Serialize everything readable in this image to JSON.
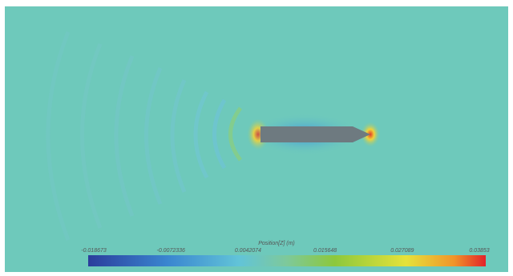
{
  "colorbar": {
    "title": "Position[Z] (m)",
    "labels": [
      "-0.018673",
      "-0.0072336",
      "0.0042074",
      "0.015648",
      "0.027089",
      "0.03853"
    ]
  }
}
